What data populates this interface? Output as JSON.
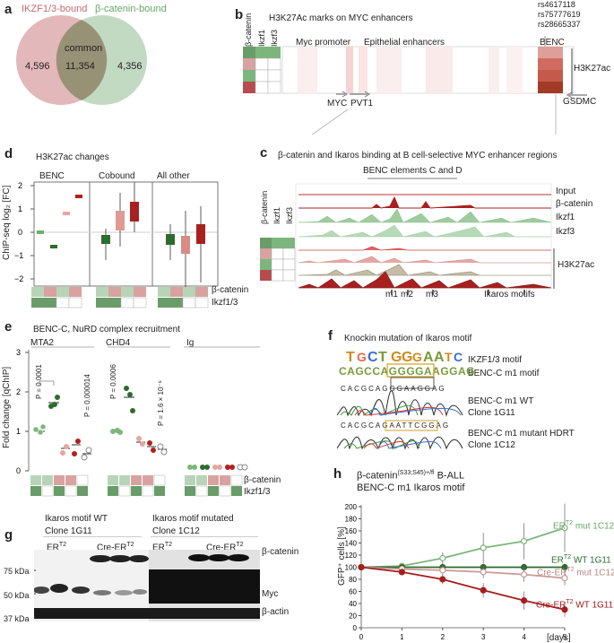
{
  "panels": {
    "a": {
      "letter": "a",
      "left_label": "IKZF1/3-bound",
      "right_label": "β-catenin-bound",
      "center_label": "common",
      "left_count": "4,596",
      "common_count": "11,354",
      "right_count": "4,356"
    },
    "b": {
      "letter": "b",
      "title": "H3K27Ac marks on MYC enhancers",
      "row_labels": [
        "β-catenin",
        "Ikzf1",
        "Ikzf3"
      ],
      "regions": [
        "Myc promoter",
        "Epithelial enhancers",
        "BENC"
      ],
      "snps": [
        "rs4617118",
        "rs75777619",
        "rs28665337"
      ],
      "track_label": "H3K27ac",
      "genes": [
        "MYC",
        "PVT1",
        "GSDMC"
      ]
    },
    "c": {
      "letter": "c",
      "title": "β-catenin and Ikaros binding at B cell-selective MYC enhancer regions",
      "region_label": "BENC elements C and D",
      "row_labels": [
        "β-catenin",
        "Ikzf1",
        "Ikzf3"
      ],
      "tracks": [
        "Input",
        "β-catenin",
        "Ikzf1",
        "Ikzf3"
      ],
      "h3k27ac_label": "H3K27ac",
      "motif_labels": [
        "m1",
        "m2",
        "m3"
      ],
      "ikaros_motifs_label": "Ikaros motifs"
    },
    "d": {
      "letter": "d",
      "title": "H3K27ac changes",
      "groups": [
        "BENC",
        "Cobound",
        "All other"
      ],
      "ylabel": "ChIP-seq log₂ [FC]",
      "legend": [
        "β-catenin",
        "Ikzf1/3"
      ]
    },
    "e": {
      "letter": "e",
      "title": "BENC-C, NuRD complex recruitment",
      "groups": [
        "MTA2",
        "CHD4",
        "Ig"
      ],
      "ylabel": "Fold change [qChIP]",
      "pvalues": [
        "P = 0.0001",
        "P = 0.000014",
        "P = 0.0006",
        "P = 1.6 × 10⁻⁶"
      ],
      "legend": [
        "β-catenin",
        "Ikzf1/3"
      ]
    },
    "f": {
      "letter": "f",
      "title": "Knockin mutation of Ikaros motif",
      "labels": [
        "IKZF1/3 motif",
        "BENC-C m1 motif",
        "BENC-C m1 WT",
        "Clone 1G11",
        "BENC-C m1 mutant HDRT",
        "Clone 1C12"
      ],
      "motif_seq": "CAGCCAGGGGAAGGAG",
      "wt_seq": "CACGCAGGGAAGGAG",
      "mut_seq": "CACGCAGAATTCGGAG"
    },
    "g": {
      "letter": "g",
      "left_title": "Ikaros motif WT",
      "left_clone": "Clone 1G11",
      "right_title": "Ikaros motif mutated",
      "right_clone": "Clone 1C12",
      "lanes": [
        "ER",
        "Cre-ER",
        "ER",
        "Cre-ER"
      ],
      "kda": [
        "75 kDa",
        "50 kDa",
        "37 kDa"
      ],
      "bands": [
        "β-catenin",
        "Myc",
        "β-actin"
      ]
    },
    "h": {
      "letter": "h",
      "title": "B-ALL",
      "subtitle": "BENC-C m1 Ikaros motif",
      "ylabel": "GFP⁺ cells [%]",
      "xlabel": "[days]"
    }
  },
  "chart_data": {
    "type": "line",
    "title": "β-catenin(S33;S45)+/fl B-ALL BENC-C m1 Ikaros motif",
    "xlabel": "[days]",
    "ylabel": "GFP+ cells [%]",
    "x": [
      0,
      1,
      2,
      3,
      4,
      5
    ],
    "xlim": [
      0,
      5
    ],
    "ylim": [
      0,
      200
    ],
    "yticks": [
      0,
      20,
      40,
      60,
      80,
      100,
      120,
      140,
      160,
      180,
      200
    ],
    "series": [
      {
        "name": "ERT2 mut 1C12",
        "color": "#7db67d",
        "values": [
          100,
          102,
          115,
          132,
          143,
          165
        ]
      },
      {
        "name": "ERT2 WT 1G11",
        "color": "#2e6b2e",
        "values": [
          100,
          100,
          100,
          100,
          100,
          100
        ]
      },
      {
        "name": "Cre-ERT2 mut 1C12",
        "color": "#c99a95",
        "values": [
          100,
          97,
          95,
          92,
          88,
          82
        ]
      },
      {
        "name": "Cre-ERT2 WT 1G11",
        "color": "#a51e1e",
        "values": [
          100,
          92,
          80,
          62,
          45,
          30
        ]
      }
    ]
  }
}
